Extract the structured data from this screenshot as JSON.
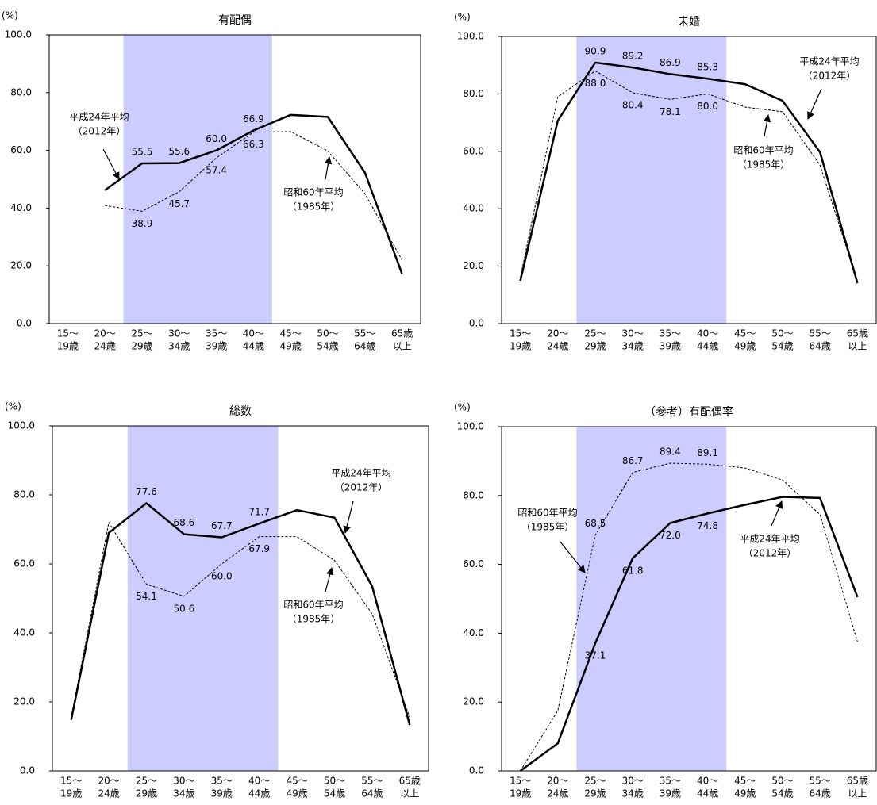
{
  "chart_data": [
    {
      "type": "line",
      "title": "有配偶",
      "y_label": "(%)",
      "categories": [
        [
          "15～",
          "19歳"
        ],
        [
          "20～",
          "24歳"
        ],
        [
          "25～",
          "29歳"
        ],
        [
          "30～",
          "34歳"
        ],
        [
          "35～",
          "39歳"
        ],
        [
          "40～",
          "44歳"
        ],
        [
          "45～",
          "49歳"
        ],
        [
          "50～",
          "54歳"
        ],
        [
          "55～",
          "64歳"
        ],
        [
          "65歳",
          "以上"
        ]
      ],
      "ylim": [
        0,
        100
      ],
      "yticks": [
        {
          "value": 0,
          "label": "0.0"
        },
        {
          "value": 20,
          "label": "20.0"
        },
        {
          "value": 40,
          "label": "40.0"
        },
        {
          "value": 60,
          "label": "60.0"
        },
        {
          "value": 80,
          "label": "80.0"
        },
        {
          "value": 100,
          "label": "100.0"
        }
      ],
      "highlight": {
        "from": 2,
        "to": 5,
        "color": "#ccccff"
      },
      "series": [
        {
          "name": "平成24年平均",
          "year_label": "（2012年）",
          "color": "#000000",
          "style": "solid",
          "values": [
            null,
            46.2,
            55.5,
            55.6,
            60.0,
            66.9,
            72.3,
            71.6,
            52.3,
            17.2
          ],
          "value_labels": [
            null,
            null,
            "55.5",
            "55.6",
            "60.0",
            "66.9",
            null,
            null,
            null,
            null
          ]
        },
        {
          "name": "昭和60年平均",
          "year_label": "（1985年）",
          "color": "#000000",
          "style": "dashed",
          "values": [
            null,
            40.9,
            38.9,
            45.7,
            57.4,
            66.3,
            66.5,
            59.8,
            45.0,
            22.0
          ],
          "value_labels": [
            null,
            null,
            "38.9",
            "45.7",
            "57.4",
            "66.3",
            null,
            null,
            null,
            null
          ]
        }
      ]
    },
    {
      "type": "line",
      "title": "未婚",
      "y_label": "(%)",
      "categories": [
        [
          "15～",
          "19歳"
        ],
        [
          "20～",
          "24歳"
        ],
        [
          "25～",
          "29歳"
        ],
        [
          "30～",
          "34歳"
        ],
        [
          "35～",
          "39歳"
        ],
        [
          "40～",
          "44歳"
        ],
        [
          "45～",
          "49歳"
        ],
        [
          "50～",
          "54歳"
        ],
        [
          "55～",
          "64歳"
        ],
        [
          "65歳",
          "以上"
        ]
      ],
      "ylim": [
        0,
        100
      ],
      "yticks": [
        {
          "value": 0,
          "label": "0.0"
        },
        {
          "value": 20,
          "label": "20.0"
        },
        {
          "value": 40,
          "label": "40.0"
        },
        {
          "value": 60,
          "label": "60.0"
        },
        {
          "value": 80,
          "label": "80.0"
        },
        {
          "value": 100,
          "label": "100.0"
        }
      ],
      "highlight": {
        "from": 2,
        "to": 5,
        "color": "#ccccff"
      },
      "series": [
        {
          "name": "平成24年平均",
          "year_label": "（2012年）",
          "color": "#000000",
          "style": "solid",
          "values": [
            14.9,
            70.7,
            90.9,
            89.2,
            86.9,
            85.3,
            83.4,
            77.6,
            59.7,
            14.1
          ],
          "value_labels": [
            null,
            null,
            "90.9",
            "89.2",
            "86.9",
            "85.3",
            null,
            null,
            null,
            null
          ]
        },
        {
          "name": "昭和60年平均",
          "year_label": "（1985年）",
          "color": "#000000",
          "style": "dashed",
          "values": [
            16.0,
            79.0,
            88.0,
            80.4,
            78.1,
            80.0,
            75.4,
            73.8,
            55.2,
            14.5
          ],
          "value_labels": [
            null,
            null,
            "88.0",
            "80.4",
            "78.1",
            "80.0",
            null,
            null,
            null,
            null
          ]
        }
      ]
    },
    {
      "type": "line",
      "title": "総数",
      "y_label": "(%)",
      "categories": [
        [
          "15～",
          "19歳"
        ],
        [
          "20～",
          "24歳"
        ],
        [
          "25～",
          "29歳"
        ],
        [
          "30～",
          "34歳"
        ],
        [
          "35～",
          "39歳"
        ],
        [
          "40～",
          "44歳"
        ],
        [
          "45～",
          "49歳"
        ],
        [
          "50～",
          "54歳"
        ],
        [
          "55～",
          "64歳"
        ],
        [
          "65歳",
          "以上"
        ]
      ],
      "ylim": [
        0,
        100
      ],
      "yticks": [
        {
          "value": 0,
          "label": "0.0"
        },
        {
          "value": 20,
          "label": "20.0"
        },
        {
          "value": 40,
          "label": "40.0"
        },
        {
          "value": 60,
          "label": "60.0"
        },
        {
          "value": 80,
          "label": "80.0"
        },
        {
          "value": 100,
          "label": "100.0"
        }
      ],
      "highlight": {
        "from": 2,
        "to": 5,
        "color": "#ccccff"
      },
      "series": [
        {
          "name": "平成24年平均",
          "year_label": "（2012年）",
          "color": "#000000",
          "style": "solid",
          "values": [
            14.8,
            69.0,
            77.6,
            68.6,
            67.7,
            71.7,
            75.6,
            73.4,
            53.5,
            13.3
          ],
          "value_labels": [
            null,
            null,
            "77.6",
            "68.6",
            "67.7",
            "71.7",
            null,
            null,
            null,
            null
          ]
        },
        {
          "name": "昭和60年平均",
          "year_label": "（1985年）",
          "color": "#000000",
          "style": "dashed",
          "values": [
            15.5,
            72.0,
            54.1,
            50.6,
            60.0,
            67.9,
            67.9,
            61.0,
            45.5,
            15.5
          ],
          "value_labels": [
            null,
            null,
            "54.1",
            "50.6",
            "60.0",
            "67.9",
            null,
            null,
            null,
            null
          ]
        }
      ]
    },
    {
      "type": "line",
      "title": "（参考）有配偶率",
      "y_label": "(%)",
      "categories": [
        [
          "15～",
          "19歳"
        ],
        [
          "20～",
          "24歳"
        ],
        [
          "25～",
          "29歳"
        ],
        [
          "30～",
          "34歳"
        ],
        [
          "35～",
          "39歳"
        ],
        [
          "40～",
          "44歳"
        ],
        [
          "45～",
          "49歳"
        ],
        [
          "50～",
          "54歳"
        ],
        [
          "55～",
          "64歳"
        ],
        [
          "65歳",
          "以上"
        ]
      ],
      "ylim": [
        0,
        100
      ],
      "yticks": [
        {
          "value": 0,
          "label": "0.0"
        },
        {
          "value": 20,
          "label": "20.0"
        },
        {
          "value": 40,
          "label": "40.0"
        },
        {
          "value": 60,
          "label": "60.0"
        },
        {
          "value": 80,
          "label": "80.0"
        },
        {
          "value": 100,
          "label": "100.0"
        }
      ],
      "highlight": {
        "from": 2,
        "to": 5,
        "color": "#ccccff"
      },
      "series": [
        {
          "name": "平成24年平均",
          "year_label": "（2012年）",
          "color": "#000000",
          "style": "solid",
          "values": [
            0,
            8.0,
            37.1,
            61.8,
            72.0,
            74.8,
            77.3,
            79.6,
            79.3,
            50.5
          ],
          "value_labels": [
            null,
            null,
            "37.1",
            "61.8",
            "72.0",
            "74.8",
            null,
            null,
            null,
            null
          ]
        },
        {
          "name": "昭和60年平均",
          "year_label": "（1985年）",
          "color": "#000000",
          "style": "dashed",
          "values": [
            0,
            17.5,
            68.5,
            86.7,
            89.4,
            89.1,
            88.0,
            84.5,
            74.5,
            37.5
          ],
          "value_labels": [
            null,
            null,
            "68.5",
            "86.7",
            "89.4",
            "89.1",
            null,
            null,
            null,
            null
          ]
        }
      ]
    }
  ]
}
